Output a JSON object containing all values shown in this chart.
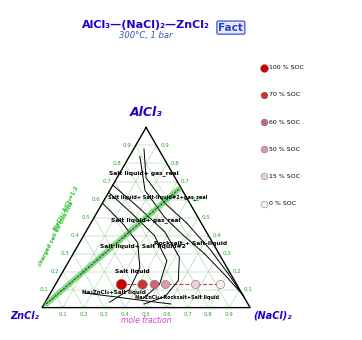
{
  "title_main": "AlCl₃—(NaCl)₂—ZnCl₂",
  "title_sub": "300°C, 1 bar",
  "corner_top": "AlCl₃",
  "corner_bl": "ZnCl₂",
  "corner_br": "(NaCl)₂",
  "xlabel": "mole fraction",
  "legend_labels": [
    "100 % SOC",
    "70 % SOC",
    "60 % SOC",
    "50 % SOC",
    "15 % SOC",
    "0 % SOC"
  ],
  "legend_colors": [
    "#cc0000",
    "#cc3333",
    "#cc6677",
    "#dd99aa",
    "#f0ccdd",
    "#f8eef2"
  ],
  "soc_nacl2": [
    0.315,
    0.415,
    0.475,
    0.525,
    0.67,
    0.79
  ],
  "soc_alcl3": [
    0.13,
    0.13,
    0.13,
    0.13,
    0.13,
    0.13
  ],
  "bg_color": "#ffffff",
  "grid_color": "#99cc99",
  "green_line_color": "#22bb22",
  "tick_color": "#22aa22",
  "title_color": "#2200cc",
  "subtitle_color": "#3355cc",
  "corner_color": "#2200cc",
  "xlabel_color": "#cc44cc",
  "fact_color": "#2244cc"
}
